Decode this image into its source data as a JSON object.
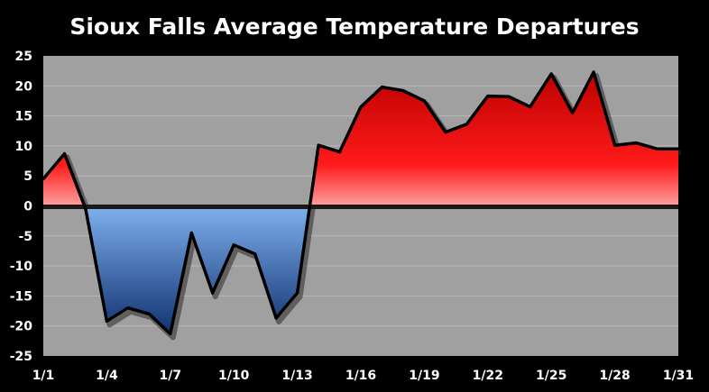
{
  "chart_data": {
    "type": "area",
    "title": "Sioux Falls Average Temperature Departures",
    "xlabel": "",
    "ylabel": "",
    "x": [
      "1/1",
      "1/2",
      "1/3",
      "1/4",
      "1/5",
      "1/6",
      "1/7",
      "1/8",
      "1/9",
      "1/10",
      "1/11",
      "1/12",
      "1/13",
      "1/14",
      "1/15",
      "1/16",
      "1/17",
      "1/18",
      "1/19",
      "1/20",
      "1/21",
      "1/22",
      "1/23",
      "1/24",
      "1/25",
      "1/26",
      "1/27",
      "1/28",
      "1/29",
      "1/30",
      "1/31"
    ],
    "x_tick_labels": [
      "1/1",
      "1/4",
      "1/7",
      "1/10",
      "1/13",
      "1/16",
      "1/19",
      "1/22",
      "1/25",
      "1/28",
      "1/31"
    ],
    "ylim": [
      -25,
      25
    ],
    "y_ticks": [
      25,
      20,
      15,
      10,
      5,
      0,
      -5,
      -10,
      -15,
      -20,
      -25
    ],
    "series": [
      {
        "values": [
          4.5,
          8.7,
          -0.5,
          -19.2,
          -17.0,
          -18.0,
          -21.3,
          -4.5,
          -14.5,
          -6.5,
          -8.0,
          -18.7,
          -14.5,
          10.1,
          9.0,
          16.5,
          19.8,
          19.2,
          17.5,
          12.3,
          13.6,
          18.3,
          18.2,
          16.5,
          22.0,
          15.5,
          22.3,
          10.1,
          10.5,
          9.5,
          9.5
        ]
      }
    ],
    "colors": {
      "positive_top": "#b80000",
      "positive_bottom": "#ffa0a0",
      "negative_top": "#7fb0ee",
      "negative_bottom": "#0d2d6b",
      "plot_background": "#a0a0a0",
      "page_background": "#000000",
      "outline": "#000000",
      "text": "#ffffff"
    },
    "grid": true,
    "legend": "none"
  }
}
